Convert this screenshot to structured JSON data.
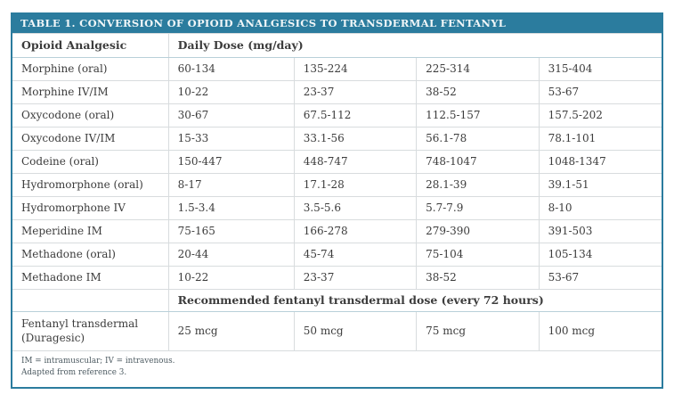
{
  "table": {
    "title": "TABLE 1. CONVERSION OF OPIOID ANALGESICS TO TRANSDERMAL FENTANYL",
    "columns": {
      "drug_header": "Opioid Analgesic",
      "dose_header": "Daily Dose (mg/day)"
    },
    "rows": [
      {
        "drug": "Morphine (oral)",
        "doses": [
          "60-134",
          "135-224",
          "225-314",
          "315-404"
        ]
      },
      {
        "drug": "Morphine IV/IM",
        "doses": [
          "10-22",
          "23-37",
          "38-52",
          "53-67"
        ]
      },
      {
        "drug": "Oxycodone (oral)",
        "doses": [
          "30-67",
          "67.5-112",
          "112.5-157",
          "157.5-202"
        ]
      },
      {
        "drug": "Oxycodone IV/IM",
        "doses": [
          "15-33",
          "33.1-56",
          "56.1-78",
          "78.1-101"
        ]
      },
      {
        "drug": "Codeine (oral)",
        "doses": [
          "150-447",
          "448-747",
          "748-1047",
          "1048-1347"
        ]
      },
      {
        "drug": "Hydromorphone (oral)",
        "doses": [
          "8-17",
          "17.1-28",
          "28.1-39",
          "39.1-51"
        ]
      },
      {
        "drug": "Hydromorphone IV",
        "doses": [
          "1.5-3.4",
          "3.5-5.6",
          "5.7-7.9",
          "8-10"
        ]
      },
      {
        "drug": "Meperidine IM",
        "doses": [
          "75-165",
          "166-278",
          "279-390",
          "391-503"
        ]
      },
      {
        "drug": "Methadone (oral)",
        "doses": [
          "20-44",
          "45-74",
          "75-104",
          "105-134"
        ]
      },
      {
        "drug": "Methadone IM",
        "doses": [
          "10-22",
          "23-37",
          "38-52",
          "53-67"
        ]
      }
    ],
    "section_header": "Recommended fentanyl transdermal dose (every 72 hours)",
    "fentanyl_row": {
      "drug_line1": "Fentanyl transdermal",
      "drug_line2": "(Duragesic)",
      "doses": [
        "25 mcg",
        "50 mcg",
        "75 mcg",
        "100 mcg"
      ]
    },
    "footnote_line1": "IM = intramuscular; IV = intravenous.",
    "footnote_line2": "Adapted from reference 3.",
    "colors": {
      "accent_teal": "#2b7c9e",
      "row_line_gray": "#d8dcde",
      "section_line_teal": "#b9d0d9"
    }
  }
}
